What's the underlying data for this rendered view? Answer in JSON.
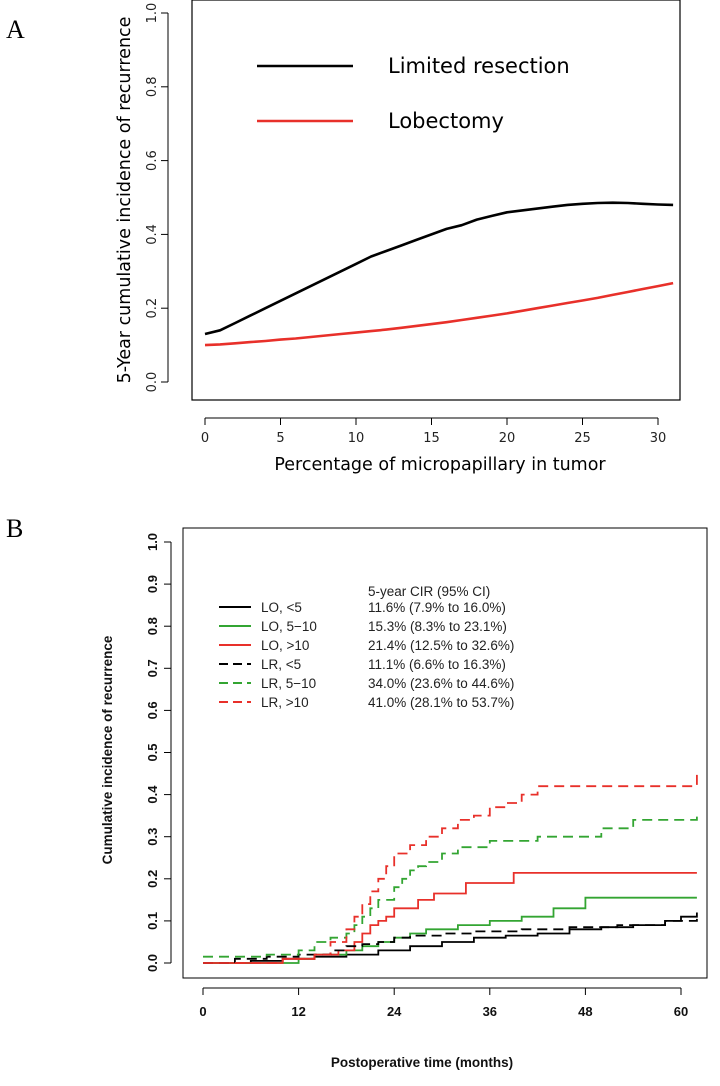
{
  "chart_data": [
    {
      "panel": "A",
      "type": "line",
      "xlabel": "Percentage of micropapillary in tumor",
      "ylabel": "5-Year cumulative incidence of recurrence",
      "xlim": [
        0,
        31
      ],
      "ylim": [
        0,
        1.0
      ],
      "xticks": [
        "0",
        "5",
        "10",
        "15",
        "20",
        "25",
        "30"
      ],
      "yticks": [
        "0.0",
        "0.2",
        "0.4",
        "0.6",
        "0.8",
        "1.0"
      ],
      "series": [
        {
          "name": "Limited resection",
          "color": "#000000",
          "x": [
            0,
            1,
            2,
            3,
            4,
            5,
            6,
            7,
            8,
            9,
            10,
            11,
            12,
            13,
            14,
            15,
            16,
            17,
            18,
            19,
            20,
            21,
            22,
            23,
            24,
            25,
            26,
            27,
            28,
            29,
            30,
            31
          ],
          "y": [
            0.13,
            0.14,
            0.16,
            0.18,
            0.2,
            0.22,
            0.24,
            0.26,
            0.28,
            0.3,
            0.32,
            0.34,
            0.355,
            0.37,
            0.385,
            0.4,
            0.415,
            0.425,
            0.44,
            0.45,
            0.46,
            0.465,
            0.47,
            0.475,
            0.48,
            0.483,
            0.485,
            0.486,
            0.485,
            0.483,
            0.481,
            0.48
          ]
        },
        {
          "name": "Lobectomy",
          "color": "#e8302a",
          "x": [
            0,
            1,
            2,
            3,
            4,
            5,
            6,
            7,
            8,
            9,
            10,
            11,
            12,
            13,
            14,
            15,
            16,
            17,
            18,
            19,
            20,
            21,
            22,
            23,
            24,
            25,
            26,
            27,
            28,
            29,
            30,
            31
          ],
          "y": [
            0.1,
            0.102,
            0.105,
            0.108,
            0.111,
            0.115,
            0.118,
            0.122,
            0.126,
            0.13,
            0.134,
            0.138,
            0.142,
            0.147,
            0.152,
            0.157,
            0.162,
            0.168,
            0.174,
            0.18,
            0.186,
            0.193,
            0.2,
            0.207,
            0.214,
            0.221,
            0.228,
            0.236,
            0.244,
            0.252,
            0.26,
            0.268
          ]
        }
      ]
    },
    {
      "panel": "B",
      "type": "line",
      "step": true,
      "xlabel": "Postoperative time (months)",
      "ylabel": "Cumulative incidence of recurrence",
      "xlim": [
        0,
        62
      ],
      "ylim": [
        0,
        1.0
      ],
      "xticks": [
        "0",
        "12",
        "24",
        "36",
        "48",
        "60"
      ],
      "yticks": [
        "0.0",
        "0.1",
        "0.2",
        "0.3",
        "0.4",
        "0.5",
        "0.6",
        "0.7",
        "0.8",
        "0.9",
        "1.0"
      ],
      "legend_header": "5-year CIR (95% CI)",
      "series": [
        {
          "name": "LO, <5",
          "color": "#000000",
          "dash": "solid",
          "cir": "11.6% (7.9% to 16.0%)",
          "x": [
            0,
            6,
            10,
            14,
            18,
            22,
            26,
            30,
            34,
            38,
            42,
            46,
            50,
            54,
            58,
            60,
            62
          ],
          "y": [
            0.0,
            0.005,
            0.01,
            0.015,
            0.02,
            0.03,
            0.04,
            0.05,
            0.06,
            0.065,
            0.07,
            0.08,
            0.085,
            0.09,
            0.1,
            0.11,
            0.12
          ]
        },
        {
          "name": "LO, 5−10",
          "color": "#33a532",
          "dash": "solid",
          "cir": "15.3% (8.3% to 23.1%)",
          "x": [
            0,
            12,
            14,
            18,
            20,
            22,
            24,
            26,
            28,
            32,
            36,
            40,
            44,
            48,
            62
          ],
          "y": [
            0.0,
            0.01,
            0.02,
            0.03,
            0.04,
            0.05,
            0.06,
            0.07,
            0.08,
            0.09,
            0.1,
            0.11,
            0.13,
            0.155,
            0.155
          ]
        },
        {
          "name": "LO, >10",
          "color": "#e8302a",
          "dash": "solid",
          "cir": "21.4% (12.5% to 32.6%)",
          "x": [
            0,
            10,
            14,
            17,
            19,
            20,
            21,
            22,
            23,
            24,
            27,
            29,
            33,
            39,
            62
          ],
          "y": [
            0.0,
            0.01,
            0.02,
            0.03,
            0.05,
            0.07,
            0.09,
            0.1,
            0.11,
            0.13,
            0.15,
            0.165,
            0.19,
            0.214,
            0.214
          ]
        },
        {
          "name": "LR, <5",
          "color": "#000000",
          "dash": "dashed",
          "cir": "11.1% (6.6% to 16.3%)",
          "x": [
            0,
            4,
            8,
            12,
            16,
            18,
            20,
            22,
            24,
            26,
            30,
            34,
            40,
            46,
            52,
            58,
            62
          ],
          "y": [
            0.0,
            0.01,
            0.015,
            0.02,
            0.03,
            0.04,
            0.045,
            0.05,
            0.06,
            0.065,
            0.07,
            0.075,
            0.08,
            0.085,
            0.09,
            0.1,
            0.111
          ]
        },
        {
          "name": "LR, 5−10",
          "color": "#33a532",
          "dash": "dashed",
          "cir": "34.0% (23.6% to 44.6%)",
          "x": [
            0,
            8,
            12,
            14,
            16,
            18,
            19,
            20,
            21,
            22,
            24,
            25,
            26,
            27,
            28,
            30,
            32,
            36,
            42,
            50,
            54,
            62
          ],
          "y": [
            0.015,
            0.02,
            0.03,
            0.05,
            0.06,
            0.07,
            0.09,
            0.11,
            0.13,
            0.15,
            0.18,
            0.2,
            0.22,
            0.23,
            0.24,
            0.26,
            0.275,
            0.29,
            0.3,
            0.32,
            0.34,
            0.36
          ]
        },
        {
          "name": "LR, >10",
          "color": "#e8302a",
          "dash": "dashed",
          "cir": "41.0% (28.1% to 53.7%)",
          "x": [
            0,
            10,
            14,
            16,
            18,
            19,
            20,
            21,
            22,
            23,
            24,
            26,
            28,
            30,
            32,
            34,
            36,
            38,
            40,
            42,
            62
          ],
          "y": [
            0.0,
            0.01,
            0.02,
            0.05,
            0.08,
            0.11,
            0.14,
            0.17,
            0.2,
            0.23,
            0.26,
            0.28,
            0.3,
            0.32,
            0.34,
            0.35,
            0.37,
            0.38,
            0.4,
            0.42,
            0.45
          ]
        }
      ]
    }
  ],
  "panels": {
    "a": "A",
    "b": "B"
  }
}
